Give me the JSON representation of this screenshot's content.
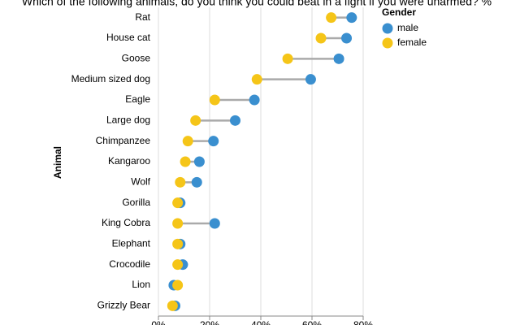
{
  "chart_data": {
    "type": "dumbbell",
    "title": "Which of the following animals, do you think you could beat in a fight if you were unarmed? %",
    "y_label": "Animal",
    "legend_title": "Gender",
    "categories": [
      "Rat",
      "House cat",
      "Goose",
      "Medium sized dog",
      "Eagle",
      "Large dog",
      "Chimpanzee",
      "Kangaroo",
      "Wolf",
      "Gorilla",
      "King Cobra",
      "Elephant",
      "Crocodile",
      "Lion",
      "Grizzly Bear"
    ],
    "series": [
      {
        "name": "male",
        "color": "#3a8fcf",
        "values": [
          75.5,
          73.5,
          70.5,
          59.5,
          37.5,
          30,
          21.5,
          16,
          15,
          8.5,
          22,
          8.5,
          9.5,
          6,
          6.5
        ]
      },
      {
        "name": "female",
        "color": "#f5c518",
        "values": [
          67.5,
          63.5,
          50.5,
          38.5,
          22,
          14.5,
          11.5,
          10.5,
          8.5,
          7.5,
          7.5,
          7.5,
          7.5,
          7.5,
          5.5
        ]
      }
    ],
    "xlim": [
      0,
      80
    ],
    "xticks": [
      {
        "value": 0,
        "label": "0%"
      },
      {
        "value": 20,
        "label": "20%"
      },
      {
        "value": 40,
        "label": "40%"
      },
      {
        "value": 60,
        "label": "60%"
      },
      {
        "value": 80,
        "label": "80%"
      }
    ],
    "grid": true
  }
}
